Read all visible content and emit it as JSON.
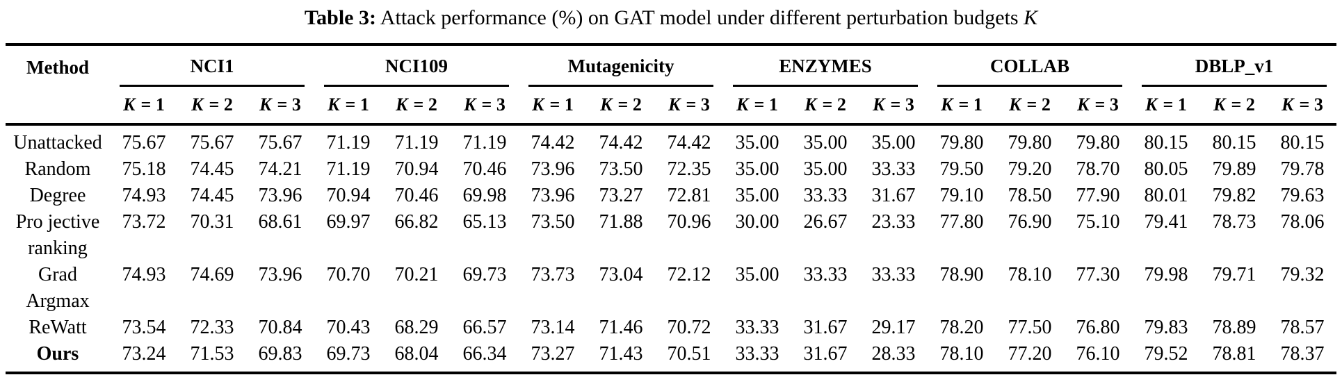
{
  "colors": {
    "background": "#ffffff",
    "text": "#000000",
    "rule": "#000000"
  },
  "title": {
    "prefix": "Table 3:",
    "rest": " Attack performance (%) on GAT model under different perturbation budgets ",
    "k": "K"
  },
  "table": {
    "method_header": "Method",
    "groups": [
      {
        "label": "NCI1"
      },
      {
        "label": "NCI109"
      },
      {
        "label": "Mutagenicity"
      },
      {
        "label": "ENZYMES"
      },
      {
        "label": "COLLAB"
      },
      {
        "label": "DBLP_v1"
      }
    ],
    "k_labels": [
      {
        "k": "K",
        "eq": "= 1"
      },
      {
        "k": "K",
        "eq": "= 2"
      },
      {
        "k": "K",
        "eq": "= 3"
      }
    ],
    "rows": [
      {
        "method_lines": [
          "Unattacked"
        ],
        "bold": false,
        "values": [
          "75.67",
          "75.67",
          "75.67",
          "71.19",
          "71.19",
          "71.19",
          "74.42",
          "74.42",
          "74.42",
          "35.00",
          "35.00",
          "35.00",
          "79.80",
          "79.80",
          "79.80",
          "80.15",
          "80.15",
          "80.15"
        ]
      },
      {
        "method_lines": [
          "Random"
        ],
        "bold": false,
        "values": [
          "75.18",
          "74.45",
          "74.21",
          "71.19",
          "70.94",
          "70.46",
          "73.96",
          "73.50",
          "72.35",
          "35.00",
          "35.00",
          "33.33",
          "79.50",
          "79.20",
          "78.70",
          "80.05",
          "79.89",
          "79.78"
        ]
      },
      {
        "method_lines": [
          "Degree"
        ],
        "bold": false,
        "values": [
          "74.93",
          "74.45",
          "73.96",
          "70.94",
          "70.46",
          "69.98",
          "73.96",
          "73.27",
          "72.81",
          "35.00",
          "33.33",
          "31.67",
          "79.10",
          "78.50",
          "77.90",
          "80.01",
          "79.82",
          "79.63"
        ]
      },
      {
        "method_lines": [
          "Pro jective",
          "ranking"
        ],
        "bold": false,
        "values": [
          "73.72",
          "70.31",
          "68.61",
          "69.97",
          "66.82",
          "65.13",
          "73.50",
          "71.88",
          "70.96",
          "30.00",
          "26.67",
          "23.33",
          "77.80",
          "76.90",
          "75.10",
          "79.41",
          "78.73",
          "78.06"
        ]
      },
      {
        "method_lines": [
          "Grad",
          "Argmax"
        ],
        "bold": false,
        "values": [
          "74.93",
          "74.69",
          "73.96",
          "70.70",
          "70.21",
          "69.73",
          "73.73",
          "73.04",
          "72.12",
          "35.00",
          "33.33",
          "33.33",
          "78.90",
          "78.10",
          "77.30",
          "79.98",
          "79.71",
          "79.32"
        ]
      },
      {
        "method_lines": [
          "ReWatt"
        ],
        "bold": false,
        "values": [
          "73.54",
          "72.33",
          "70.84",
          "70.43",
          "68.29",
          "66.57",
          "73.14",
          "71.46",
          "70.72",
          "33.33",
          "31.67",
          "29.17",
          "78.20",
          "77.50",
          "76.80",
          "79.83",
          "78.89",
          "78.57"
        ]
      },
      {
        "method_lines": [
          "Ours"
        ],
        "bold": true,
        "values": [
          "73.24",
          "71.53",
          "69.83",
          "69.73",
          "68.04",
          "66.34",
          "73.27",
          "71.43",
          "70.51",
          "33.33",
          "31.67",
          "28.33",
          "78.10",
          "77.20",
          "76.10",
          "79.52",
          "78.81",
          "78.37"
        ]
      }
    ]
  }
}
